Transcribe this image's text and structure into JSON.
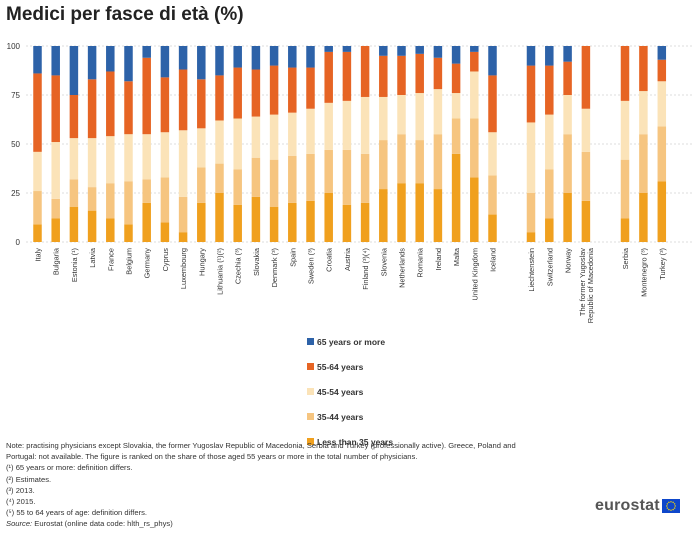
{
  "title": "Medici per fasce di età (%)",
  "chart_data": {
    "type": "bar",
    "stacked": true,
    "ylim": [
      0,
      100
    ],
    "yticks": [
      0,
      25,
      50,
      75,
      100
    ],
    "grid": true,
    "legend_position": "bottom",
    "groups": [
      {
        "name": "eu",
        "count": 28
      },
      {
        "name": "efta",
        "count": 4
      },
      {
        "name": "candidates",
        "count": 4
      }
    ],
    "categories": [
      "Italy",
      "Bulgaria",
      "Estonia (¹)",
      "Latvia",
      "France",
      "Belgium",
      "Germany",
      "Cyprus",
      "Luxembourg",
      "Hungary",
      "Lithuania (¹)(²)",
      "Czechia (³)",
      "Slovakia",
      "Denmark (³)",
      "Spain",
      "Sweden (³)",
      "Croatia",
      "Austria",
      "Finland (³)(⁴)",
      "Slovenia",
      "Netherlands",
      "Romania",
      "Ireland",
      "Malta",
      "United Kingdom",
      "Iceland",
      "Liechtenstein",
      "Switzerland",
      "Norway",
      "The former Yugoslav Republic of Macedonia",
      "Serbia",
      "Montenegro (³)",
      "Turkey (³)"
    ],
    "series": [
      {
        "name": "Less than 35 years",
        "color": "#f0a01e",
        "values": [
          9,
          12,
          18,
          16,
          12,
          9,
          20,
          10,
          5,
          20,
          25,
          19,
          23,
          18,
          20,
          21,
          25,
          19,
          20,
          27,
          30,
          30,
          27,
          45,
          33,
          14,
          5,
          12,
          25,
          21,
          12,
          25,
          31
        ]
      },
      {
        "name": "35-44 years",
        "color": "#f6c580",
        "values": [
          17,
          10,
          14,
          12,
          18,
          22,
          12,
          23,
          18,
          18,
          15,
          18,
          20,
          24,
          24,
          24,
          22,
          28,
          25,
          25,
          25,
          22,
          28,
          18,
          30,
          20,
          20,
          25,
          30,
          25,
          30,
          30,
          28
        ]
      },
      {
        "name": "45-54 years",
        "color": "#fbe3b8",
        "values": [
          20,
          29,
          21,
          25,
          24,
          24,
          23,
          23,
          34,
          20,
          22,
          26,
          21,
          23,
          22,
          23,
          24,
          25,
          29,
          22,
          20,
          24,
          23,
          13,
          24,
          22,
          36,
          28,
          20,
          22,
          30,
          22,
          23
        ]
      },
      {
        "name": "55-64 years",
        "color": "#e66424",
        "values": [
          40,
          34,
          22,
          30,
          33,
          27,
          39,
          28,
          31,
          25,
          23,
          26,
          24,
          25,
          23,
          21,
          26,
          25,
          26,
          21,
          20,
          20,
          16,
          15,
          10,
          29,
          29,
          25,
          17,
          32,
          28,
          23,
          11
        ]
      },
      {
        "name": "65 years or more",
        "color": "#2d62a8",
        "values": [
          14,
          15,
          25,
          17,
          13,
          18,
          6,
          16,
          12,
          17,
          15,
          11,
          12,
          10,
          11,
          11,
          3,
          3,
          0,
          5,
          5,
          4,
          6,
          9,
          3,
          15,
          10,
          10,
          8,
          0,
          0,
          0,
          7
        ]
      }
    ]
  },
  "notes": [
    "Note: practising physicians except Slovakia, the former Yugoslav Republic of Macedonia, Serbia and Turkey (professionally active). Greece, Poland and",
    "Portugal: not available. The figure is ranked on the share of those aged 55 years or more in the total number of physicians.",
    "(¹) 65 years or more: definition differs.",
    "(²) Estimates.",
    "(³) 2013.",
    "(⁴) 2015.",
    "(⁵) 55 to 64 years of age: definition differs."
  ],
  "source": {
    "label": "Source:",
    "text": "Eurostat (online data code: hlth_rs_phys)"
  },
  "logo": {
    "text": "eurostat",
    "flag_color": "#0e47cb",
    "star_color": "#ffdd00",
    "icon": "eu-flag-icon"
  }
}
